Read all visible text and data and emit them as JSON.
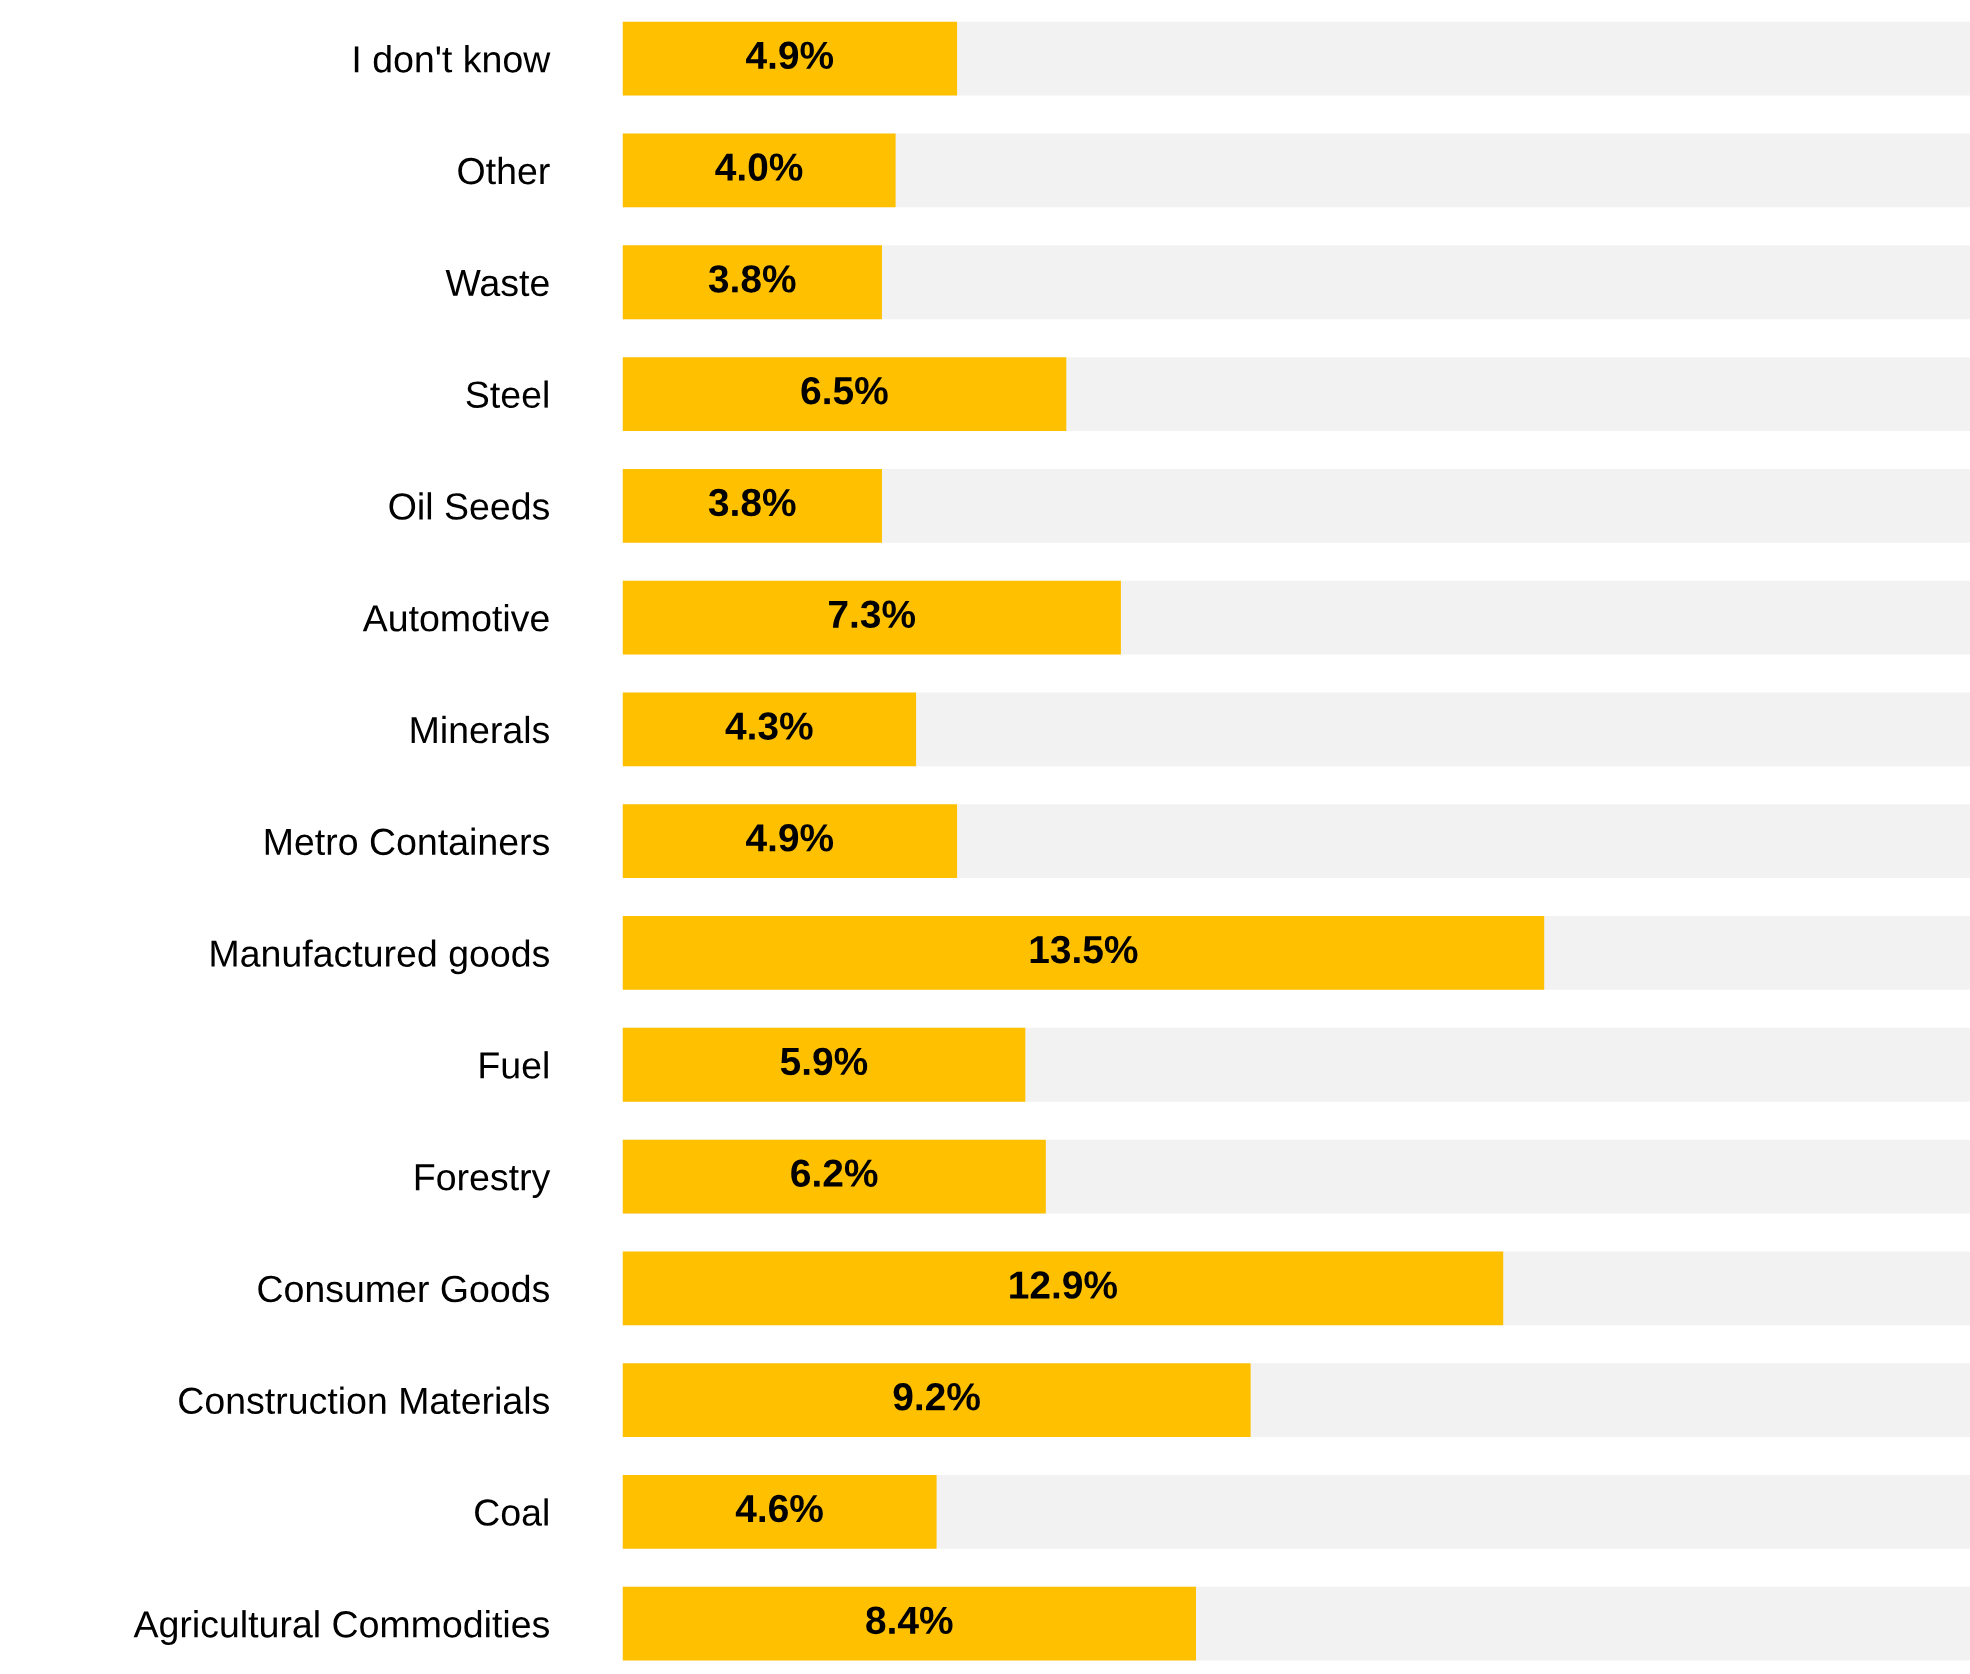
{
  "chart_data": {
    "type": "bar",
    "orientation": "horizontal",
    "categories": [
      "I don't know",
      "Other",
      "Waste",
      "Steel",
      "Oil Seeds",
      "Automotive",
      "Minerals",
      "Metro Containers",
      "Manufactured goods",
      "Fuel",
      "Forestry",
      "Consumer Goods",
      "Construction Materials",
      "Coal",
      "Agricultural Commodities"
    ],
    "values": [
      4.9,
      4.0,
      3.8,
      6.5,
      3.8,
      7.3,
      4.3,
      4.9,
      13.5,
      5.9,
      6.2,
      12.9,
      9.2,
      4.6,
      8.4
    ],
    "color": "#ffc000",
    "value_labels": [
      "4.9%",
      "4.0%",
      "3.8%",
      "6.5%",
      "3.8%",
      "7.3%",
      "4.3%",
      "4.9%",
      "13.5%",
      "5.9%",
      "6.2%",
      "12.9%",
      "9.2%",
      "4.6%",
      "8.4%"
    ],
    "grid": false,
    "legend": false
  }
}
